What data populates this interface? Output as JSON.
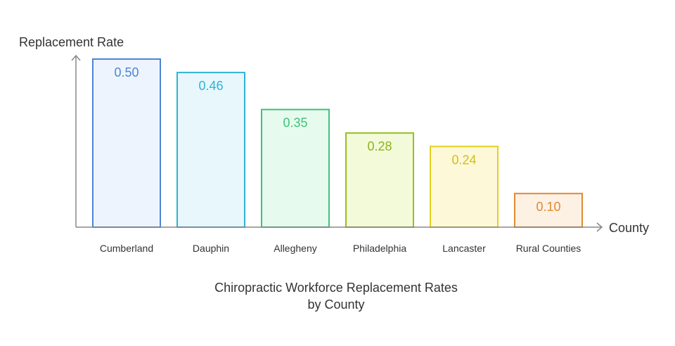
{
  "chart_data": {
    "type": "bar",
    "title_lines": [
      "Chiropractic Workforce Replacement Rates",
      "by County"
    ],
    "xlabel": "County",
    "ylabel": "Replacement Rate",
    "categories": [
      "Cumberland",
      "Dauphin",
      "Allegheny",
      "Philadelphia",
      "Lancaster",
      "Rural Counties"
    ],
    "values": [
      0.5,
      0.46,
      0.35,
      0.28,
      0.24,
      0.1
    ],
    "value_labels": [
      "0.50",
      "0.46",
      "0.35",
      "0.28",
      "0.24",
      "0.10"
    ],
    "ylim": [
      0,
      0.5
    ],
    "grid": false,
    "legend": "none",
    "bar_colors": [
      {
        "stroke": "#4a86d4",
        "fill": "#eef4fd",
        "text": "#4a86d4"
      },
      {
        "stroke": "#2fb2d6",
        "fill": "#e8f7fc",
        "text": "#2fb2d6"
      },
      {
        "stroke": "#3ec27a",
        "fill": "#e6fbee",
        "text": "#3ec27a"
      },
      {
        "stroke": "#96c020",
        "fill": "#f3fad9",
        "text": "#8eb31c"
      },
      {
        "stroke": "#e3cf1e",
        "fill": "#fdf9d8",
        "text": "#d4bd12"
      },
      {
        "stroke": "#e08a30",
        "fill": "#fdf1e4",
        "text": "#e08a30"
      }
    ],
    "axis_color": "#888888"
  }
}
